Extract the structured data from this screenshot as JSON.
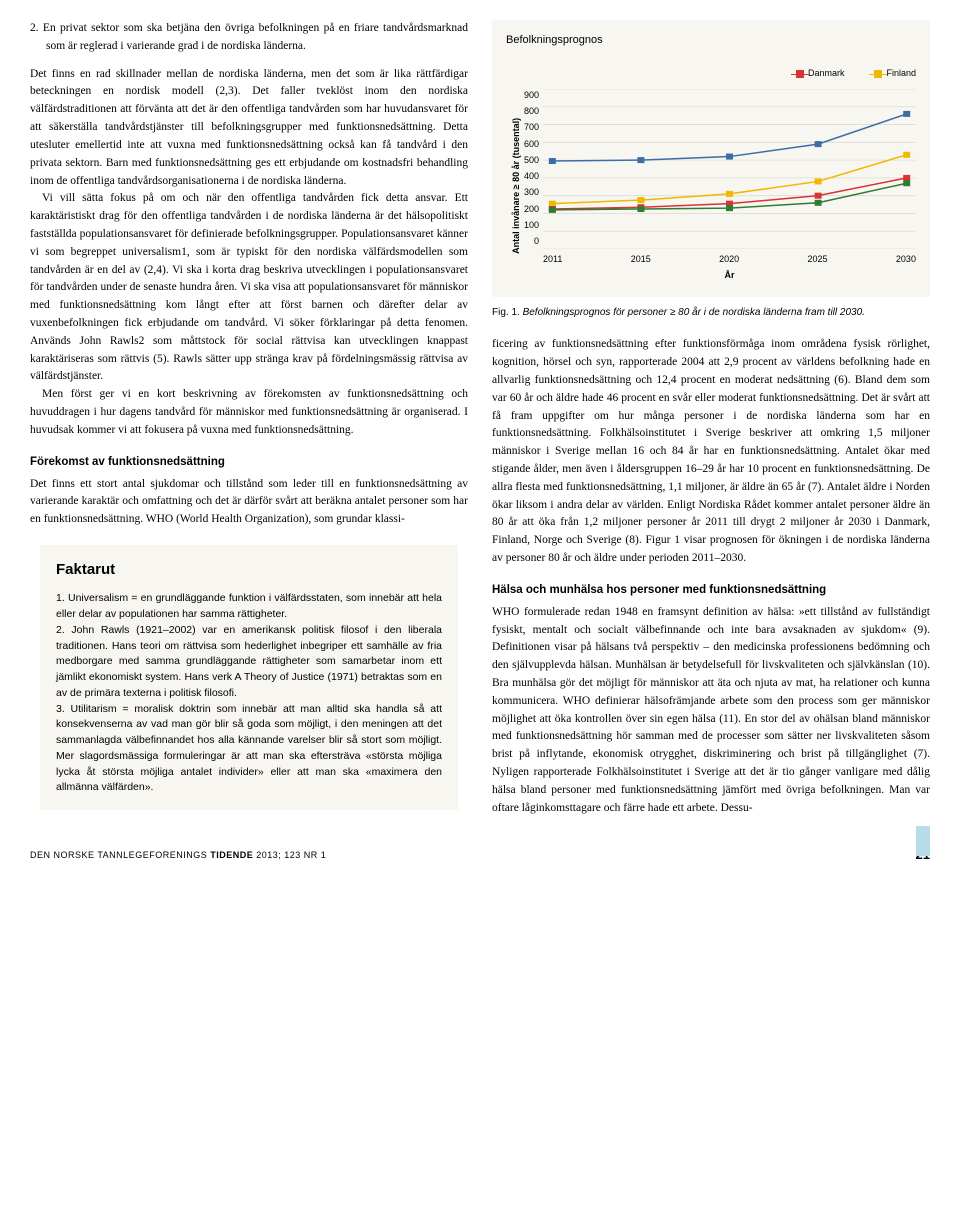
{
  "left": {
    "numbered_item": "2. En privat sektor som ska betjäna den övriga befolkningen på en friare tandvårdsmarknad som är reglerad i varierande grad i de nordiska länderna.",
    "para1": "Det finns en rad skillnader mellan de nordiska länderna, men det som är lika rättfärdigar beteckningen en nordisk modell (2,3). Det faller tveklöst inom den nordiska välfärdstraditionen att förvänta att det är den offentliga tandvården som har huvudansvaret för att säkerställa tandvårdstjänster till befolkningsgrupper med funktionsnedsättning. Detta utesluter emellertid inte att vuxna med funktionsnedsättning också kan få tandvård i den privata sektorn. Barn med funktionsnedsättning ges ett erbjudande om kostnadsfri behandling inom de offentliga tandvårdsorganisationerna i de nordiska länderna.",
    "para2": "Vi vill sätta fokus på om och när den offentliga tandvården fick detta ansvar. Ett karaktäristiskt drag för den offentliga tandvården i de nordiska länderna är det hälsopolitiskt fastställda populationsansvaret för definierade befolkningsgrupper. Populationsansvaret känner vi som begreppet universalism1, som är typiskt för den nordiska välfärdsmodellen som tandvården är en del av (2,4). Vi ska i korta drag beskriva utvecklingen i populationsansvaret för tandvården under de senaste hundra åren. Vi ska visa att populationsansvaret för människor med funktionsnedsättning kom långt efter att först barnen och därefter delar av vuxenbefolkningen fick erbjudande om tandvård. Vi söker förklaringar på detta fenomen. Används John Rawls2 som måttstock för social rättvisa kan utvecklingen knappast karaktäriseras som rättvis (5). Rawls sätter upp stränga krav på fördelningsmässig rättvisa av välfärdstjänster.",
    "para3": "Men först ger vi en kort beskrivning av förekomsten av funktionsnedsättning och huvuddragen i hur dagens tandvård för människor med funktionsnedsättning är organiserad. I huvudsak kommer vi att fokusera på vuxna med funktionsnedsättning.",
    "heading_forekomst": "Förekomst av funktionsnedsättning",
    "para4": "Det finns ett stort antal sjukdomar och tillstånd som leder till en funktionsnedsättning av varierande karaktär och omfattning och det är därför svårt att beräkna antalet personer som har en funktionsnedsättning. WHO (World Health Organization), som grundar klassi-",
    "faktarut": {
      "title": "Faktarut",
      "item1": "1. Universalism = en grundläggande funktion i välfärdsstaten, som innebär att hela eller delar av populationen har samma rättigheter.",
      "item2": "2. John Rawls (1921–2002) var en amerikansk politisk filosof i den liberala traditionen. Hans teori om rättvisa som hederlighet inbegriper ett samhälle av fria medborgare med samma grundläggande rättigheter som samarbetar inom ett jämlikt ekonomiskt system. Hans verk A Theory of Justice (1971) betraktas som en av de primära texterna i politisk filosofi.",
      "item3": "3. Utilitarism = moralisk doktrin som innebär att man alltid ska handla så att konsekvenserna av vad man gör blir så goda som möjligt, i den meningen att det sammanlagda välbefinnandet hos alla kännande varelser blir så stort som möjligt. Mer slagordsmässiga formuleringar är att man ska eftersträva «största möjliga lycka åt största möjliga antalet individer» eller att man ska «maximera den allmänna välfärden»."
    }
  },
  "chart": {
    "title": "Befolkningsprognos",
    "legend": [
      {
        "label": "Danmark",
        "color": "#d93333",
        "marker": "square"
      },
      {
        "label": "Finland",
        "color": "#f0b800",
        "marker": "square"
      }
    ],
    "y_axis_label": "Antal invånare ≥ 80 år (tusental)",
    "x_axis_label": "År",
    "ylim": [
      0,
      900
    ],
    "ytick_step": 100,
    "yticks": [
      "900",
      "800",
      "700",
      "600",
      "500",
      "400",
      "300",
      "200",
      "100",
      "0"
    ],
    "xticks": [
      "2011",
      "2015",
      "2020",
      "2025",
      "2030"
    ],
    "grid_color": "#dcdcd6",
    "background_color": "#f7f6f1",
    "series": {
      "sverige": {
        "color": "#3a6ea5",
        "values": [
          495,
          500,
          520,
          590,
          760
        ]
      },
      "finland": {
        "color": "#f0b800",
        "values": [
          255,
          275,
          310,
          380,
          530
        ]
      },
      "danmark": {
        "color": "#d93333",
        "values": [
          225,
          235,
          255,
          300,
          400
        ]
      },
      "norge": {
        "color": "#2e7d32",
        "values": [
          220,
          225,
          230,
          260,
          370
        ]
      }
    },
    "caption_label": "Fig. 1.",
    "caption_text": "Befolkningsprognos för personer ≥ 80 år i de nordiska länderna fram till 2030."
  },
  "right": {
    "para1": "ficering av funktionsnedsättning efter funktionsförmåga inom områdena fysisk rörlighet, kognition, hörsel och syn, rapporterade 2004 att 2,9 procent av världens befolkning hade en allvarlig funktionsnedsättning och 12,4 procent en moderat nedsättning (6). Bland dem som var 60 år och äldre hade 46 procent en svår eller moderat funktionsnedsättning. Det är svårt att få fram uppgifter om hur många personer i de nordiska länderna som har en funktionsnedsättning. Folkhälsoinstitutet i Sverige beskriver att omkring 1,5 miljoner människor i Sverige mellan 16 och 84 år har en funktionsnedsättning. Antalet ökar med stigande ålder, men även i åldersgruppen 16–29 år har 10 procent en funktionsnedsättning. De allra flesta med funktionsnedsättning, 1,1 miljoner, är äldre än 65 år (7). Antalet äldre i Norden ökar liksom i andra delar av världen. Enligt Nordiska Rådet kommer antalet personer äldre än 80 år att öka från 1,2 miljoner personer år 2011 till drygt 2 miljoner år 2030 i Danmark, Finland, Norge och Sverige (8). Figur 1 visar prognosen för ökningen i de nordiska länderna av personer 80 år och äldre under perioden 2011–2030.",
    "heading2": "Hälsa och munhälsa hos personer med funktionsnedsättning",
    "para2": "WHO formulerade redan 1948 en framsynt definition av hälsa: »ett tillstånd av fullständigt fysiskt, mentalt och socialt välbefinnande och inte bara avsaknaden av sjukdom« (9). Definitionen visar på hälsans två perspektiv – den medicinska professionens bedömning och den självupplevda hälsan. Munhälsan är betydelsefull för livskvaliteten och självkänslan (10). Bra munhälsa gör det möjligt för människor att äta och njuta av mat, ha relationer och kunna kommunicera. WHO definierar hälsofrämjande arbete som den process som ger människor möjlighet att öka kontrollen över sin egen hälsa (11). En stor del av ohälsan bland människor med funktionsnedsättning hör samman med de processer som sätter ner livskvaliteten såsom brist på inflytande, ekonomisk otrygghet, diskriminering och brist på tillgänglighet (7). Nyligen rapporterade Folkhälsoinstitutet i Sverige att det är tio gånger vanligare med dålig hälsa bland personer med funktionsnedsättning jämfört med övriga befolkningen. Man var oftare låginkomsttagare och färre hade ett arbete. Dessu-"
  },
  "footer": {
    "left_prefix": "DEN NORSKE TANNLEGEFORENINGS",
    "left_title": "TIDENDE",
    "left_suffix": "2013; 123 NR 1",
    "page": "21"
  }
}
